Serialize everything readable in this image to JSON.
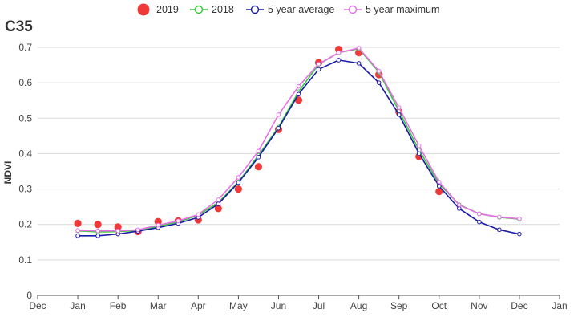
{
  "chart_data": {
    "type": "line",
    "title": "C35",
    "xlabel": "",
    "ylabel": "NDVI",
    "ylim": [
      0,
      0.7
    ],
    "yticks": [
      0,
      0.1,
      0.2,
      0.3,
      0.4,
      0.5,
      0.6,
      0.7
    ],
    "xtick_labels": [
      "Dec",
      "Jan",
      "Feb",
      "Mar",
      "Apr",
      "May",
      "Jun",
      "Jul",
      "Aug",
      "Sep",
      "Oct",
      "Nov",
      "Dec",
      "Jan"
    ],
    "grid": true,
    "legend_position": "top-center",
    "x": [
      1,
      1.5,
      2,
      2.5,
      3,
      3.5,
      4,
      4.5,
      5,
      5.5,
      6,
      6.5,
      7,
      7.5,
      8,
      8.5,
      9,
      9.5,
      10,
      10.5,
      11,
      11.5,
      12
    ],
    "series": [
      {
        "name": "2019",
        "style": "dots",
        "color": "#f03a3a",
        "values": [
          0.203,
          0.2,
          0.193,
          0.18,
          0.208,
          0.21,
          0.213,
          0.245,
          0.3,
          0.363,
          0.468,
          0.551,
          0.657,
          0.694,
          0.685,
          0.623,
          0.518,
          0.392,
          0.293,
          null,
          null,
          null,
          null
        ]
      },
      {
        "name": "2018",
        "style": "line",
        "color": "#33cc33",
        "values": [
          0.182,
          0.179,
          0.18,
          0.183,
          0.195,
          0.207,
          0.226,
          0.262,
          0.32,
          0.395,
          0.475,
          0.575,
          0.652,
          0.685,
          0.696,
          0.63,
          0.52,
          0.41,
          0.315,
          0.256,
          0.23,
          0.22,
          0.215
        ]
      },
      {
        "name": "5 year average",
        "style": "line",
        "color": "#1b1baa",
        "values": [
          0.168,
          0.168,
          0.173,
          0.181,
          0.191,
          0.203,
          0.22,
          0.258,
          0.318,
          0.39,
          0.472,
          0.568,
          0.638,
          0.664,
          0.655,
          0.6,
          0.51,
          0.4,
          0.308,
          0.245,
          0.207,
          0.185,
          0.173
        ]
      },
      {
        "name": "5 year maximum",
        "style": "line",
        "color": "#e86ee8",
        "values": [
          0.183,
          0.182,
          0.182,
          0.185,
          0.198,
          0.21,
          0.228,
          0.27,
          0.333,
          0.407,
          0.51,
          0.59,
          0.653,
          0.685,
          0.698,
          0.633,
          0.53,
          0.422,
          0.32,
          0.255,
          0.23,
          0.221,
          0.216
        ]
      }
    ]
  },
  "colors": {
    "grid": "#d9d9d9",
    "axis": "#555555",
    "text": "#333333"
  }
}
